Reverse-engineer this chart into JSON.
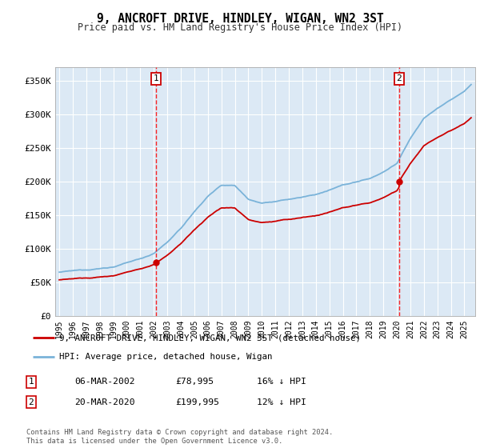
{
  "title": "9, ANCROFT DRIVE, HINDLEY, WIGAN, WN2 3ST",
  "subtitle": "Price paid vs. HM Land Registry's House Price Index (HPI)",
  "hpi_color": "#7ab3d9",
  "price_color": "#cc0000",
  "bg_color": "#dce9f5",
  "grid_color": "#ffffff",
  "ylim": [
    0,
    370000
  ],
  "yticks": [
    0,
    50000,
    100000,
    150000,
    200000,
    250000,
    300000,
    350000
  ],
  "ytick_labels": [
    "£0",
    "£50K",
    "£100K",
    "£150K",
    "£200K",
    "£250K",
    "£300K",
    "£350K"
  ],
  "sale1_year": 2002.17,
  "sale1_price": 78995,
  "sale2_year": 2020.17,
  "sale2_price": 199995,
  "legend_label1": "9, ANCROFT DRIVE, HINDLEY, WIGAN, WN2 3ST (detached house)",
  "legend_label2": "HPI: Average price, detached house, Wigan",
  "table_row1": [
    "1",
    "06-MAR-2002",
    "£78,995",
    "16% ↓ HPI"
  ],
  "table_row2": [
    "2",
    "20-MAR-2020",
    "£199,995",
    "12% ↓ HPI"
  ],
  "footnote": "Contains HM Land Registry data © Crown copyright and database right 2024.\nThis data is licensed under the Open Government Licence v3.0."
}
